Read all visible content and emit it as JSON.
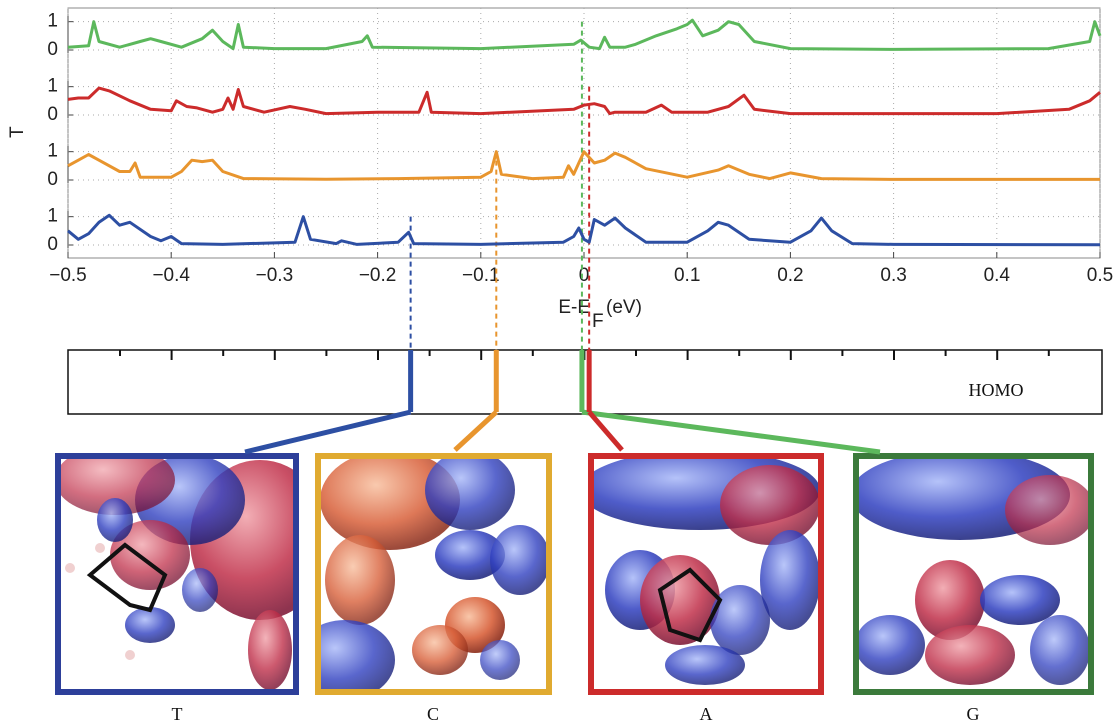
{
  "chart_data": {
    "type": "line",
    "ylabel": "T",
    "xlabel": "E-E",
    "xlabel_subscript": "F",
    "xlabel_unit": "(eV)",
    "bar_label": "HOMO",
    "xlim": [
      -0.5,
      0.5
    ],
    "xticks": [
      {
        "value": -0.5,
        "label": "−0.5"
      },
      {
        "value": -0.4,
        "label": "−0.4"
      },
      {
        "value": -0.3,
        "label": "−0.3"
      },
      {
        "value": -0.2,
        "label": "−0.2"
      },
      {
        "value": -0.1,
        "label": "−0.1"
      },
      0,
      0.1,
      0.2,
      0.3,
      0.4,
      0.5
    ],
    "ylim": [
      0,
      1.2
    ],
    "yticks": [
      0,
      1
    ],
    "grid": true,
    "series": [
      {
        "name": "G",
        "color": "#5cb85c",
        "level": -0.002,
        "x": [
          -0.5,
          -0.48,
          -0.475,
          -0.47,
          -0.45,
          -0.43,
          -0.42,
          -0.41,
          -0.39,
          -0.37,
          -0.36,
          -0.35,
          -0.34,
          -0.335,
          -0.33,
          -0.3,
          -0.25,
          -0.215,
          -0.21,
          -0.205,
          -0.1,
          -0.01,
          -0.003,
          0.005,
          0.015,
          0.02,
          0.025,
          0.04,
          0.05,
          0.07,
          0.09,
          0.1,
          0.105,
          0.115,
          0.13,
          0.14,
          0.15,
          0.165,
          0.2,
          0.3,
          0.45,
          0.49,
          0.495,
          0.5
        ],
        "values": [
          0.1,
          0.15,
          1.0,
          0.3,
          0.1,
          0.3,
          0.4,
          0.3,
          0.1,
          0.4,
          0.7,
          0.3,
          0.05,
          0.9,
          0.1,
          0.05,
          0.05,
          0.3,
          0.5,
          0.1,
          0.05,
          0.2,
          0.35,
          0.1,
          0.05,
          0.45,
          0.1,
          0.1,
          0.2,
          0.5,
          0.75,
          0.9,
          1.05,
          0.5,
          0.7,
          1.0,
          0.9,
          0.3,
          0.05,
          0.02,
          0.05,
          0.3,
          1.0,
          0.5
        ]
      },
      {
        "name": "A",
        "color": "#cc2b2b",
        "level": 0.005,
        "x": [
          -0.5,
          -0.49,
          -0.48,
          -0.47,
          -0.46,
          -0.44,
          -0.42,
          -0.4,
          -0.395,
          -0.385,
          -0.375,
          -0.36,
          -0.35,
          -0.345,
          -0.34,
          -0.335,
          -0.33,
          -0.31,
          -0.285,
          -0.27,
          -0.25,
          -0.2,
          -0.16,
          -0.152,
          -0.148,
          -0.1,
          -0.01,
          0.0,
          0.01,
          0.02,
          0.025,
          0.03,
          0.06,
          0.075,
          0.085,
          0.12,
          0.14,
          0.155,
          0.165,
          0.2,
          0.4,
          0.47,
          0.49,
          0.5
        ],
        "values": [
          0.55,
          0.6,
          0.6,
          0.95,
          0.85,
          0.5,
          0.2,
          0.15,
          0.5,
          0.3,
          0.25,
          0.1,
          0.2,
          0.6,
          0.2,
          0.9,
          0.3,
          0.1,
          0.3,
          0.2,
          0.05,
          0.1,
          0.1,
          0.8,
          0.1,
          0.05,
          0.2,
          0.35,
          0.4,
          0.3,
          0.05,
          0.1,
          0.1,
          0.35,
          0.1,
          0.1,
          0.3,
          0.7,
          0.2,
          0.05,
          0.05,
          0.2,
          0.5,
          0.8
        ]
      },
      {
        "name": "C",
        "color": "#e8952e",
        "level": -0.085,
        "x": [
          -0.5,
          -0.49,
          -0.48,
          -0.47,
          -0.45,
          -0.44,
          -0.435,
          -0.43,
          -0.4,
          -0.39,
          -0.38,
          -0.37,
          -0.36,
          -0.35,
          -0.33,
          -0.25,
          -0.18,
          -0.1,
          -0.09,
          -0.085,
          -0.08,
          -0.05,
          -0.02,
          -0.015,
          -0.01,
          -0.005,
          0.0,
          0.01,
          0.02,
          0.03,
          0.04,
          0.06,
          0.1,
          0.13,
          0.14,
          0.16,
          0.18,
          0.2,
          0.23,
          0.3,
          0.5
        ],
        "values": [
          0.5,
          0.7,
          0.9,
          0.7,
          0.3,
          0.3,
          0.6,
          0.1,
          0.1,
          0.3,
          0.7,
          0.65,
          0.7,
          0.3,
          0.05,
          0.03,
          0.05,
          0.1,
          0.3,
          1.0,
          0.2,
          0.05,
          0.1,
          0.5,
          0.2,
          0.6,
          1.0,
          0.6,
          0.7,
          0.95,
          0.8,
          0.4,
          0.1,
          0.35,
          0.5,
          0.2,
          0.05,
          0.25,
          0.05,
          0.02,
          0.02
        ]
      },
      {
        "name": "T",
        "color": "#2d4fa3",
        "level": -0.168,
        "x": [
          -0.5,
          -0.49,
          -0.48,
          -0.47,
          -0.46,
          -0.45,
          -0.44,
          -0.42,
          -0.41,
          -0.4,
          -0.39,
          -0.35,
          -0.28,
          -0.272,
          -0.265,
          -0.24,
          -0.235,
          -0.22,
          -0.18,
          -0.17,
          -0.165,
          -0.1,
          -0.02,
          -0.01,
          -0.005,
          0.0,
          0.005,
          0.01,
          0.02,
          0.03,
          0.04,
          0.06,
          0.1,
          0.12,
          0.13,
          0.14,
          0.16,
          0.2,
          0.22,
          0.23,
          0.24,
          0.26,
          0.3,
          0.5
        ],
        "values": [
          0.5,
          0.2,
          0.4,
          0.8,
          1.05,
          0.7,
          0.8,
          0.3,
          0.15,
          0.3,
          0.05,
          0.02,
          0.1,
          1.0,
          0.2,
          0.05,
          0.15,
          0.02,
          0.1,
          0.45,
          0.05,
          0.02,
          0.1,
          0.3,
          0.6,
          0.2,
          0.1,
          0.9,
          0.7,
          0.95,
          0.6,
          0.1,
          0.1,
          0.5,
          0.8,
          0.7,
          0.2,
          0.1,
          0.5,
          0.95,
          0.5,
          0.05,
          0.02,
          0.01
        ]
      }
    ]
  }
}
